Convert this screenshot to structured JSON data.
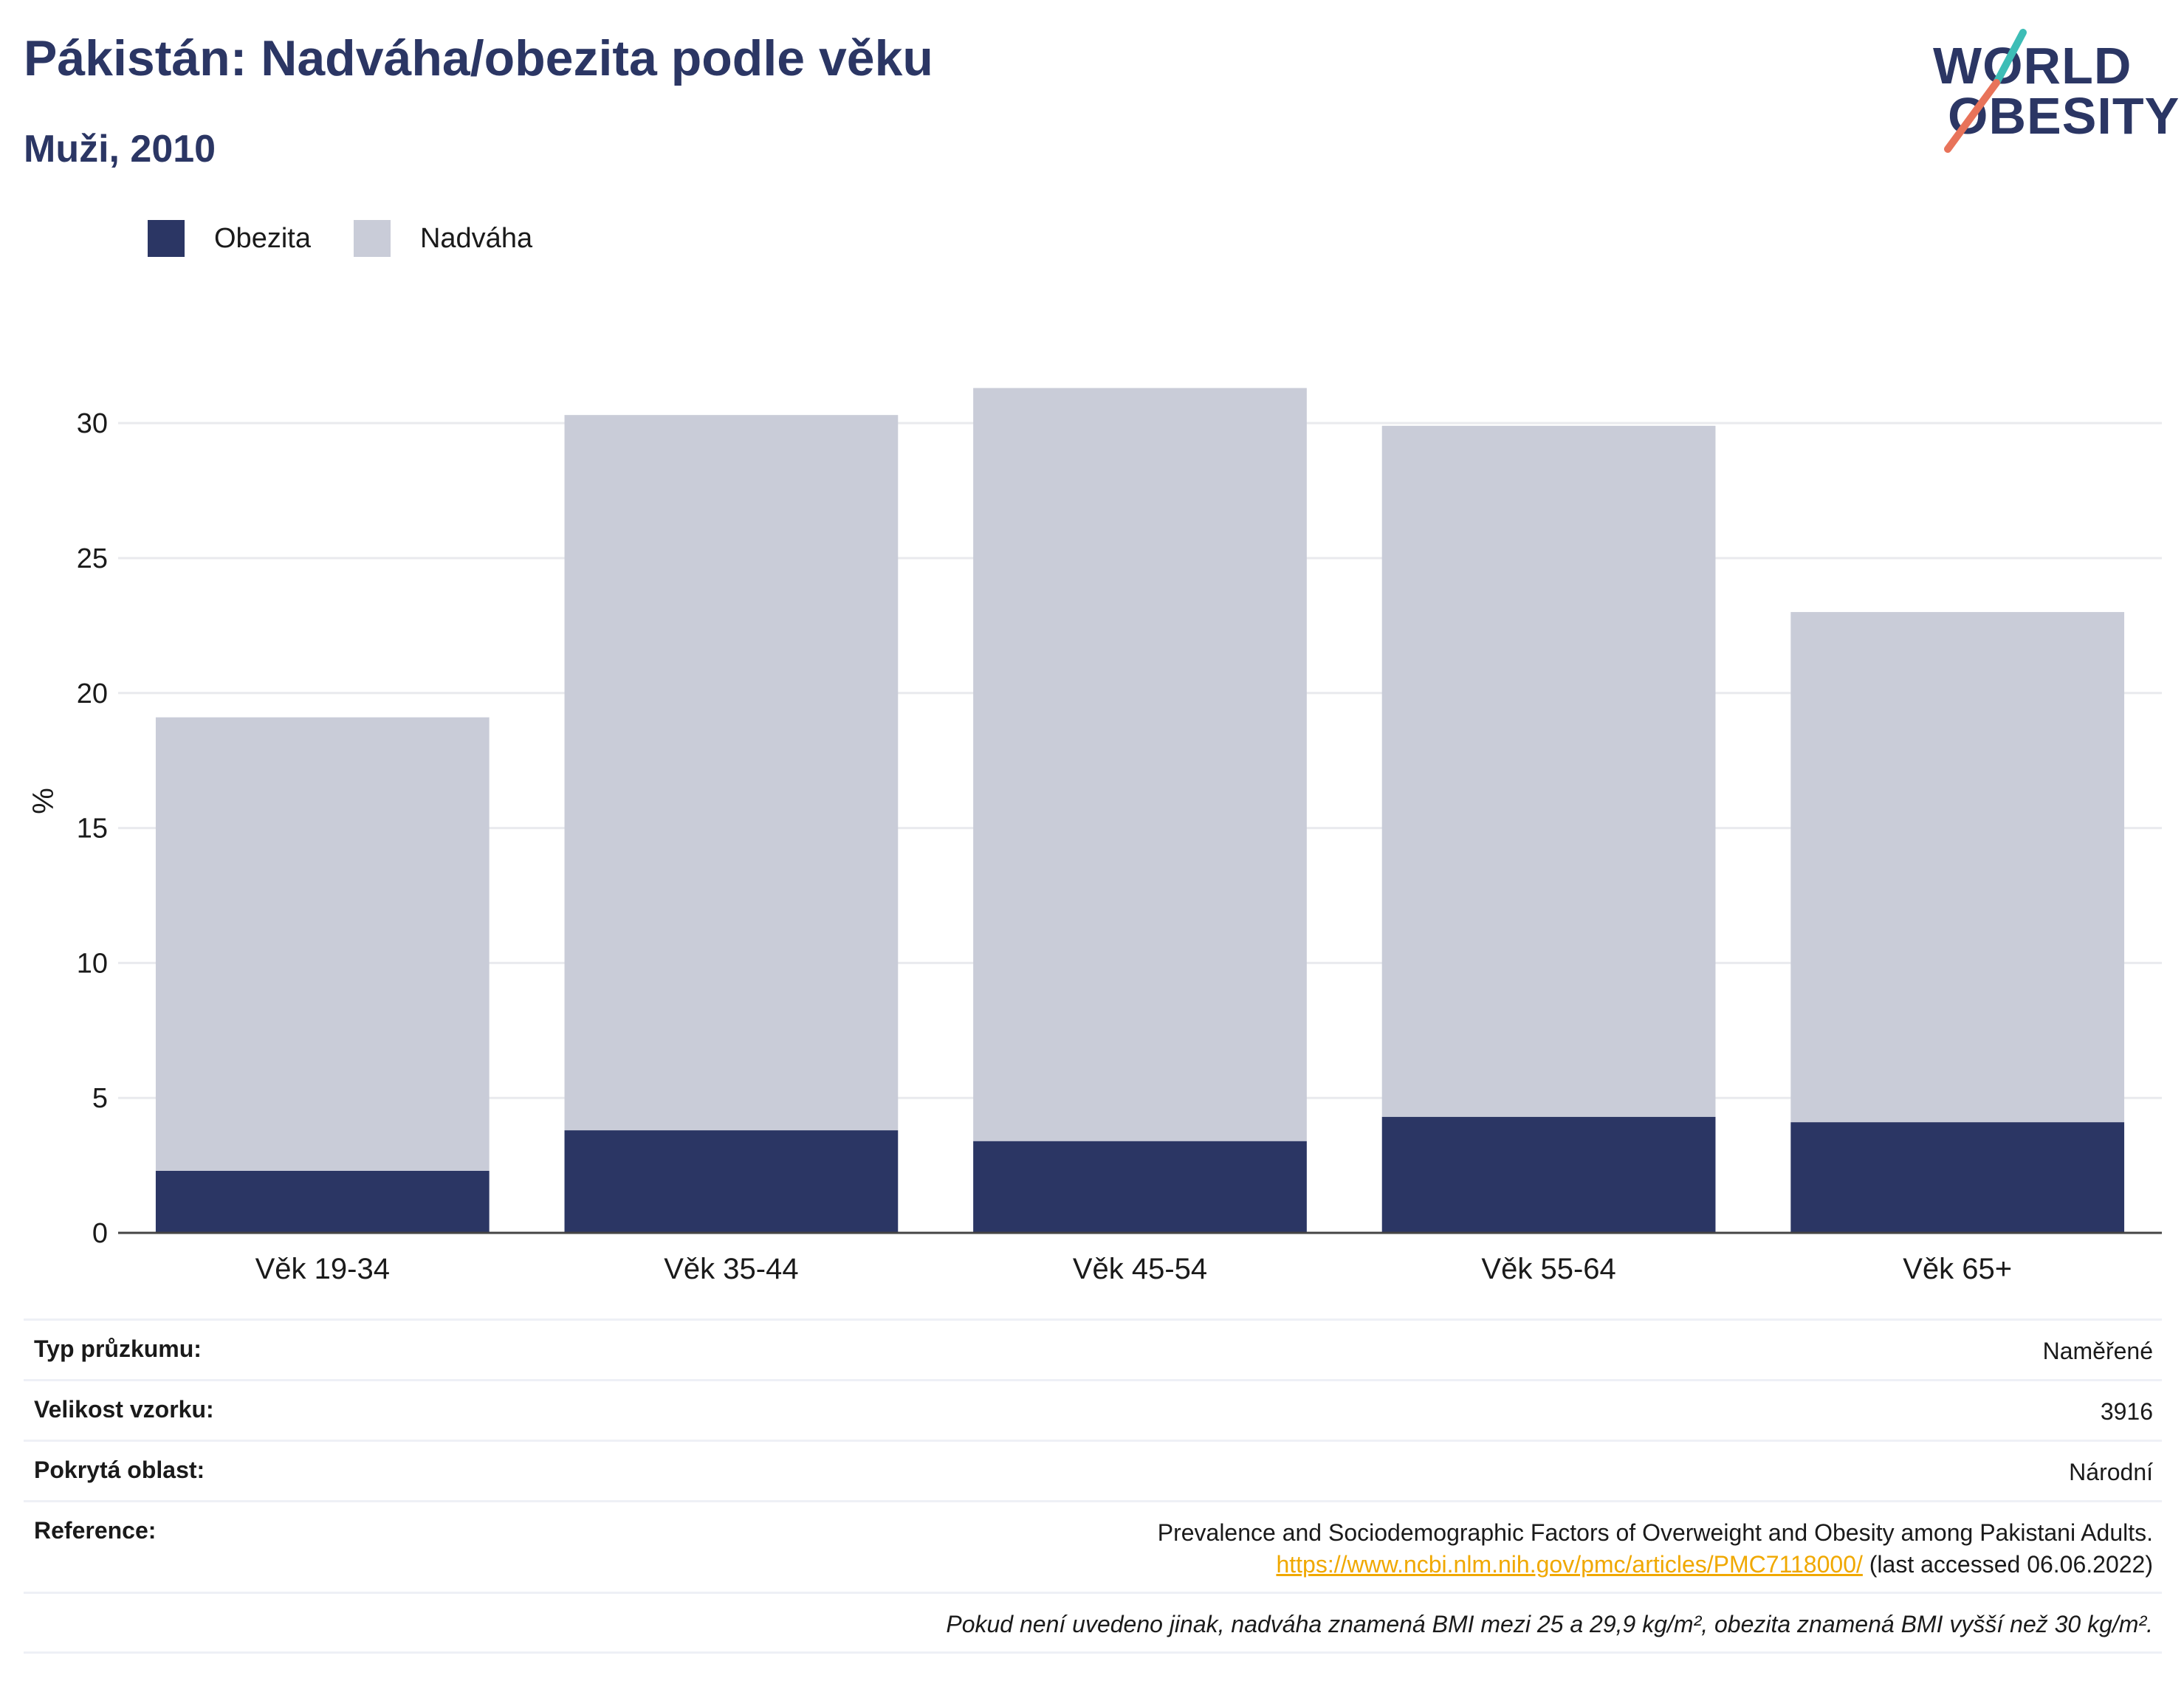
{
  "header": {
    "title": "Pákistán: Nadváha/obezita podle věku",
    "subtitle": "Muži, 2010"
  },
  "logo": {
    "line1": "WORLD",
    "line2": "OBESITY",
    "colors": {
      "teal": "#3dbdb6",
      "coral": "#e8735a",
      "navy": "#2b3664"
    }
  },
  "legend": [
    {
      "label": "Obezita",
      "color": "#2b3664"
    },
    {
      "label": "Nadváha",
      "color": "#c9ccd8"
    }
  ],
  "chart_data": {
    "type": "bar",
    "stacked": true,
    "categories": [
      "Věk 19-34",
      "Věk 35-44",
      "Věk 45-54",
      "Věk 55-64",
      "Věk 65+"
    ],
    "series": [
      {
        "name": "Obezita",
        "values": [
          2.3,
          3.8,
          3.4,
          4.3,
          4.1
        ],
        "color": "#2b3664"
      },
      {
        "name": "Nadváha",
        "values": [
          16.8,
          26.5,
          27.9,
          25.6,
          18.9
        ],
        "color": "#c9ccd8"
      }
    ],
    "ylabel": "%",
    "ylim": [
      0,
      32
    ],
    "yticks": [
      0,
      5,
      10,
      15,
      20,
      25,
      30
    ],
    "grid": true,
    "legend_position": "top-left"
  },
  "info": {
    "survey_type_label": "Typ průzkumu:",
    "survey_type_value": "Naměřené",
    "sample_size_label": "Velikost vzorku:",
    "sample_size_value": "3916",
    "coverage_label": "Pokrytá oblast:",
    "coverage_value": "Národní",
    "reference_label": "Reference:",
    "reference_text": "Prevalence and Sociodemographic Factors of Overweight and Obesity among Pakistani Adults.",
    "reference_url": "https://www.ncbi.nlm.nih.gov/pmc/articles/PMC7118000/",
    "reference_accessed": " (last accessed 06.06.2022)",
    "note": "Pokud není uvedeno jinak, nadváha znamená BMI mezi 25 a 29,9 kg/m², obezita znamená BMI vyšší než 30 kg/m²."
  }
}
